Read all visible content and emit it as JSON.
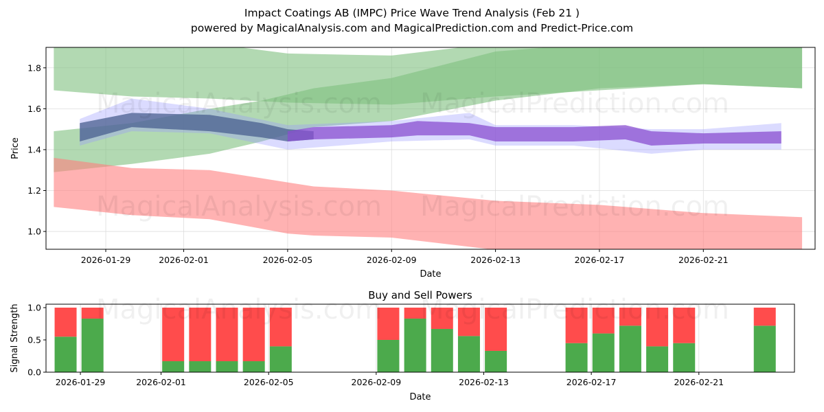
{
  "chart_data": [
    {
      "type": "area",
      "title": "Impact Coatings AB (IMPC) Price Wave Trend Analysis (Feb 21 )",
      "subtitle": "powered by MagicalAnalysis.com and MagicalPrediction.com and Predict-Price.com",
      "xlabel": "Date",
      "ylabel": "Price",
      "xlim": [
        "2026-01-26.7",
        "2026-02-25.3"
      ],
      "ylim": [
        0.913,
        1.9
      ],
      "grid": true,
      "x_ticks": [
        "2026-01-29",
        "2026-02-01",
        "2026-02-05",
        "2026-02-09",
        "2026-02-13",
        "2026-02-17",
        "2026-02-21"
      ],
      "y_ticks": [
        "1.0",
        "1.2",
        "1.4",
        "1.6",
        "1.8"
      ],
      "watermarks": [
        "MagicalAnalysis.com",
        "MagicalPrediction.com"
      ],
      "series": [
        {
          "name": "upper-light-green",
          "color": "#7fbf7f",
          "opacity": 0.6,
          "points": [
            [
              "2026-01-27",
              1.69,
              1.93
            ],
            [
              "2026-01-30",
              1.66,
              1.93
            ],
            [
              "2026-02-02",
              1.65,
              1.92
            ],
            [
              "2026-02-05",
              1.63,
              1.87
            ],
            [
              "2026-02-09",
              1.62,
              1.86
            ],
            [
              "2026-02-13",
              1.66,
              1.92
            ],
            [
              "2026-02-17",
              1.69,
              1.95
            ],
            [
              "2026-02-21",
              1.72,
              1.95
            ],
            [
              "2026-02-24.8",
              1.7,
              1.95
            ]
          ]
        },
        {
          "name": "lower-light-green",
          "color": "#7fbf7f",
          "opacity": 0.6,
          "points": [
            [
              "2026-01-27",
              1.29,
              1.49
            ],
            [
              "2026-01-30",
              1.33,
              1.53
            ],
            [
              "2026-02-02",
              1.38,
              1.6
            ],
            [
              "2026-02-04",
              1.44,
              1.64
            ],
            [
              "2026-02-06",
              1.51,
              1.7
            ],
            [
              "2026-02-09",
              1.54,
              1.75
            ],
            [
              "2026-02-13",
              1.64,
              1.88
            ],
            [
              "2026-02-17",
              1.7,
              1.92
            ],
            [
              "2026-02-21",
              1.72,
              1.92
            ],
            [
              "2026-02-24.8",
              1.7,
              1.9
            ]
          ]
        },
        {
          "name": "red-band",
          "color": "#ff7f7f",
          "opacity": 0.6,
          "points": [
            [
              "2026-01-27",
              1.12,
              1.36
            ],
            [
              "2026-01-30",
              1.08,
              1.31
            ],
            [
              "2026-02-02",
              1.06,
              1.3
            ],
            [
              "2026-02-05",
              0.99,
              1.24
            ],
            [
              "2026-02-06",
              0.98,
              1.22
            ],
            [
              "2026-02-09",
              0.97,
              1.2
            ],
            [
              "2026-02-13",
              0.91,
              1.15
            ],
            [
              "2026-02-17",
              0.88,
              1.13
            ],
            [
              "2026-02-21",
              0.86,
              1.09
            ],
            [
              "2026-02-24.8",
              0.85,
              1.07
            ]
          ]
        },
        {
          "name": "blue-wide",
          "color": "#9999ff",
          "opacity": 0.35,
          "points": [
            [
              "2026-01-28",
              1.42,
              1.55
            ],
            [
              "2026-01-30",
              1.49,
              1.65
            ],
            [
              "2026-02-02",
              1.48,
              1.6
            ],
            [
              "2026-02-05",
              1.4,
              1.52
            ],
            [
              "2026-02-09",
              1.44,
              1.54
            ],
            [
              "2026-02-12",
              1.45,
              1.58
            ],
            [
              "2026-02-13",
              1.42,
              1.52
            ],
            [
              "2026-02-16",
              1.42,
              1.52
            ],
            [
              "2026-02-19",
              1.38,
              1.5
            ],
            [
              "2026-02-21",
              1.4,
              1.5
            ],
            [
              "2026-02-24",
              1.4,
              1.53
            ]
          ]
        },
        {
          "name": "slate-early",
          "color": "#4a5f8f",
          "opacity": 0.75,
          "points": [
            [
              "2026-01-28",
              1.44,
              1.53
            ],
            [
              "2026-01-30",
              1.51,
              1.58
            ],
            [
              "2026-02-02",
              1.49,
              1.57
            ],
            [
              "2026-02-04",
              1.46,
              1.53
            ],
            [
              "2026-02-05",
              1.44,
              1.5
            ],
            [
              "2026-02-06",
              1.45,
              1.49
            ]
          ]
        },
        {
          "name": "purple-main",
          "color": "#8a4fd0",
          "opacity": 0.75,
          "points": [
            [
              "2026-02-05",
              1.44,
              1.49
            ],
            [
              "2026-02-06",
              1.45,
              1.51
            ],
            [
              "2026-02-09",
              1.46,
              1.52
            ],
            [
              "2026-02-10",
              1.47,
              1.54
            ],
            [
              "2026-02-12",
              1.47,
              1.53
            ],
            [
              "2026-02-13",
              1.44,
              1.51
            ],
            [
              "2026-02-16",
              1.44,
              1.51
            ],
            [
              "2026-02-18",
              1.45,
              1.52
            ],
            [
              "2026-02-19",
              1.42,
              1.49
            ],
            [
              "2026-02-21",
              1.43,
              1.48
            ],
            [
              "2026-02-24",
              1.43,
              1.49
            ]
          ]
        }
      ]
    },
    {
      "type": "bar",
      "title": "Buy and Sell Powers",
      "xlabel": "Date",
      "ylabel": "Signal Strength",
      "ylim": [
        0,
        1.05
      ],
      "y_ticks": [
        "0.0",
        "0.5",
        "1.0"
      ],
      "x_ticks": [
        "2026-01-29",
        "2026-02-01",
        "2026-02-05",
        "2026-02-09",
        "2026-02-13",
        "2026-02-17",
        "2026-02-21"
      ],
      "categories": [
        "2026-01-29",
        "2026-01-30",
        "2026-02-02",
        "2026-02-03",
        "2026-02-04",
        "2026-02-05",
        "2026-02-06",
        "2026-02-10",
        "2026-02-11",
        "2026-02-12",
        "2026-02-13",
        "2026-02-14",
        "2026-02-17",
        "2026-02-18",
        "2026-02-19",
        "2026-02-20",
        "2026-02-21",
        "2026-02-24"
      ],
      "series": [
        {
          "name": "Buy",
          "color": "#4caa4c",
          "values": [
            0.55,
            0.83,
            0.17,
            0.17,
            0.17,
            0.17,
            0.4,
            0.5,
            0.83,
            0.67,
            0.56,
            0.33,
            0.45,
            0.6,
            0.72,
            0.4,
            0.45,
            0.72
          ]
        },
        {
          "name": "Sell",
          "color": "#ff4c4c",
          "values": [
            0.45,
            0.17,
            0.83,
            0.83,
            0.83,
            0.83,
            0.6,
            0.5,
            0.17,
            0.33,
            0.44,
            0.67,
            0.55,
            0.4,
            0.28,
            0.6,
            0.55,
            0.28
          ]
        }
      ]
    }
  ]
}
